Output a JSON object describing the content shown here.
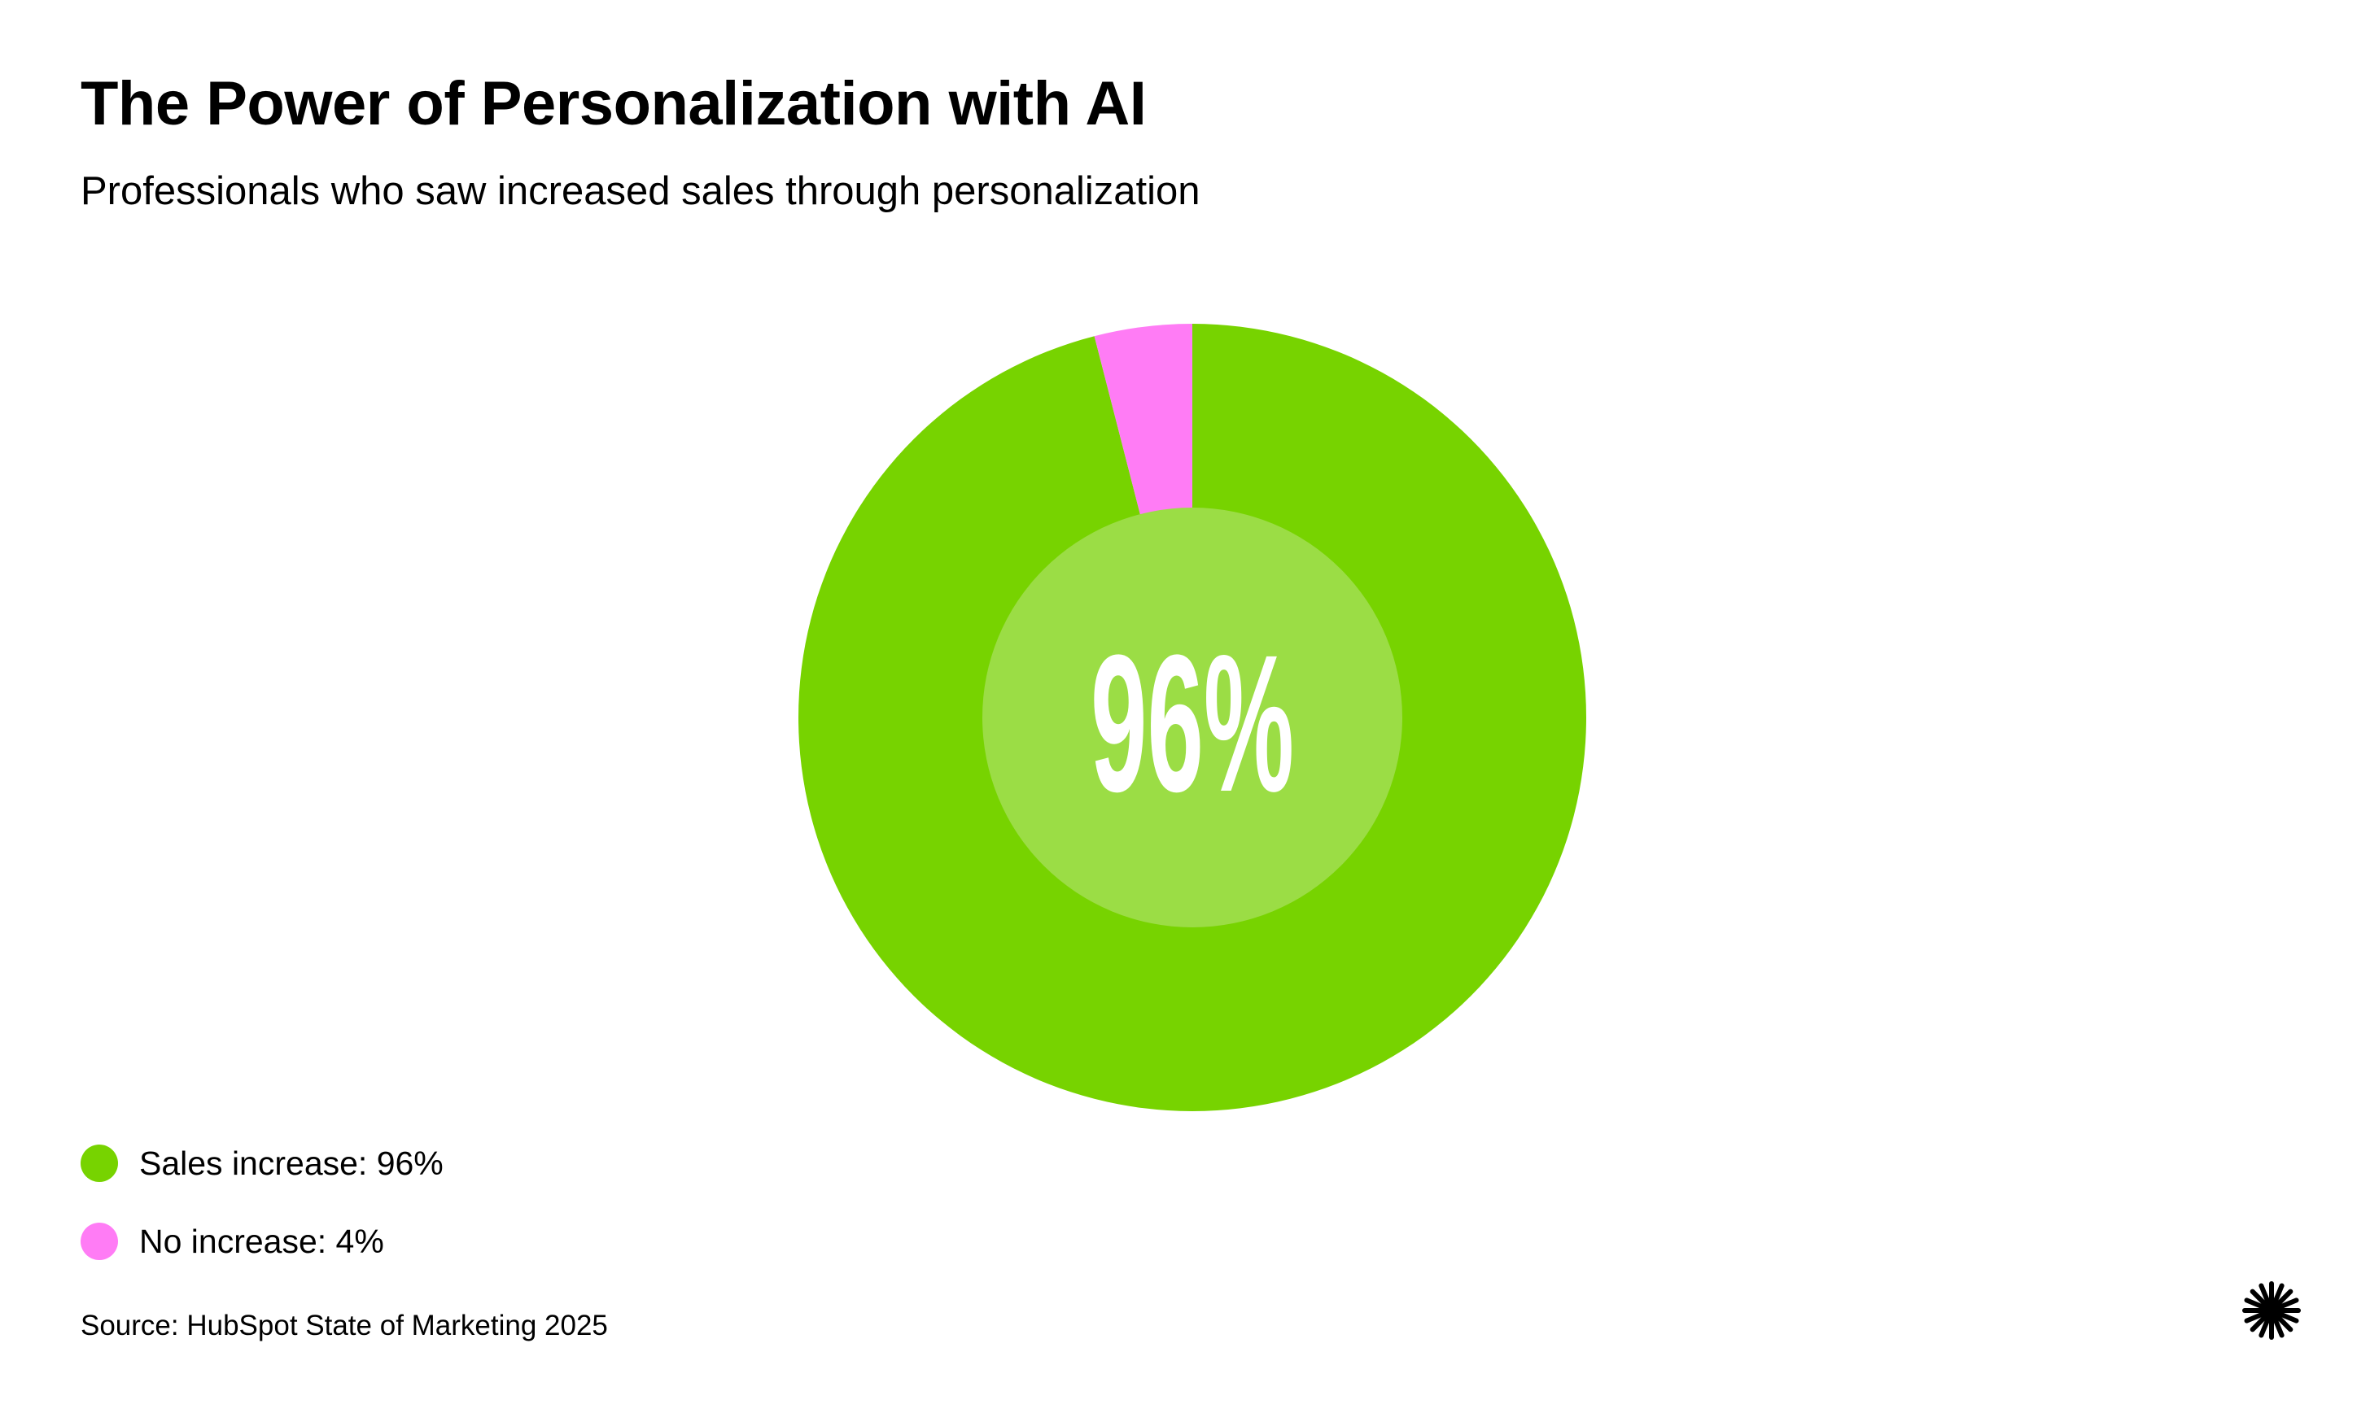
{
  "header": {
    "title": "The Power of Personalization with AI",
    "subtitle": "Professionals who saw increased sales through personalization"
  },
  "chart_data": {
    "type": "pie",
    "style": "donut",
    "title": "The Power of Personalization with AI",
    "subtitle": "Professionals who saw increased sales through personalization",
    "center_label": "96%",
    "slices": [
      {
        "label": "Sales increase",
        "value": 96,
        "color": "#77D300"
      },
      {
        "label": "No increase",
        "value": 4,
        "color": "#FF7CF5"
      }
    ],
    "legend_placement": "bottom-left",
    "inner_disc_color": "#9BDD45"
  },
  "legend": [
    {
      "label": "Sales increase: 96%",
      "color": "#77D300"
    },
    {
      "label": "No increase: 4%",
      "color": "#FF7CF5"
    }
  ],
  "footer": {
    "source": "Source: HubSpot State of Marketing 2025",
    "logo_icon": "sparkle-burst-icon"
  }
}
